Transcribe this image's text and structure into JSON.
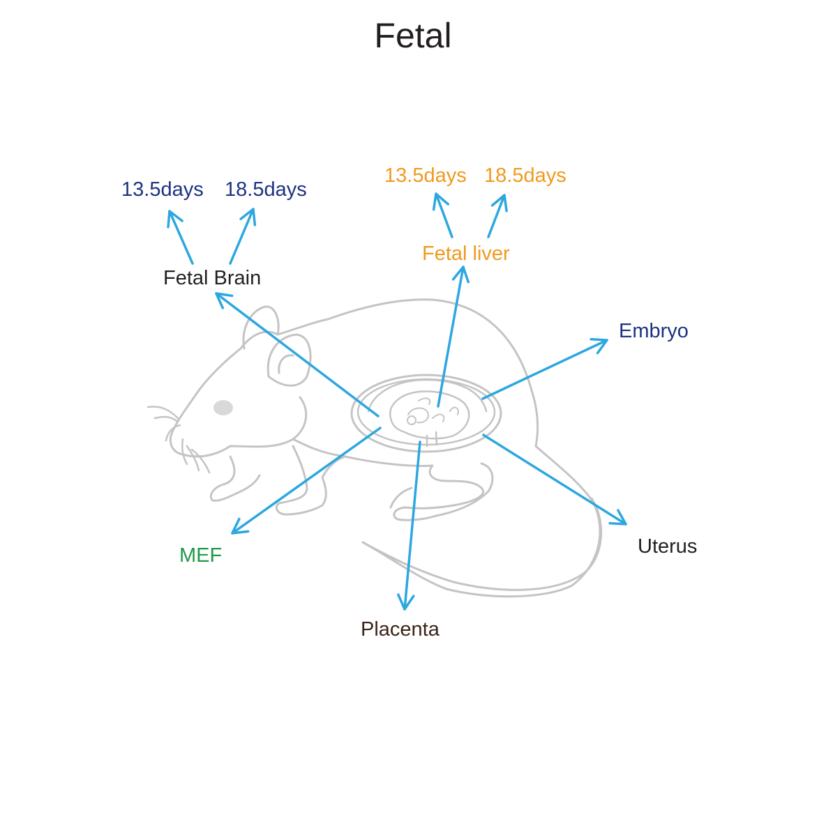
{
  "title": "Fetal",
  "labels": {
    "fetal_brain": "Fetal Brain",
    "brain_13_5": "13.5days",
    "brain_18_5": "18.5days",
    "fetal_liver": "Fetal liver",
    "liver_13_5": "13.5days",
    "liver_18_5": "18.5days",
    "embryo": "Embryo",
    "uterus": "Uterus",
    "placenta": "Placenta",
    "mef": "MEF"
  },
  "colors": {
    "title": "#231f20",
    "dark_text": "#231f20",
    "navy": "#1d3280",
    "orange": "#f09a1e",
    "green": "#1d9a47",
    "brown": "#3b2418",
    "arrow": "#2ca7e0",
    "outline": "#c4c4c4",
    "eye": "#d9d9d9"
  },
  "icons": {
    "mouse": "mouse-illustration",
    "uterus": "uterus-with-embryo-illustration"
  }
}
